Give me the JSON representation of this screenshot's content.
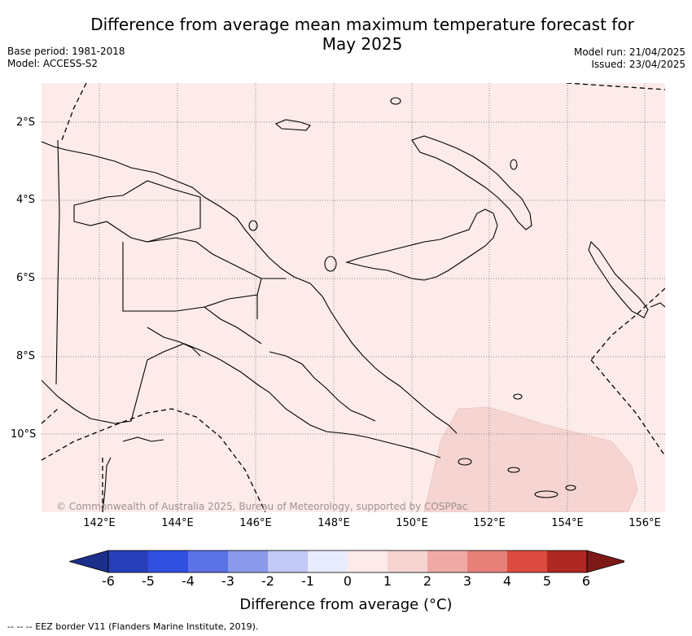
{
  "title_line1": "Difference from average mean maximum temperature forecast for",
  "title_line2": "May 2025",
  "base_period": "Base period: 1981-2018",
  "model": "Model: ACCESS-S2",
  "model_run": "Model run: 21/04/2025",
  "issued": "Issued: 23/04/2025",
  "lat_labels": [
    "2°S",
    "4°S",
    "6°S",
    "8°S",
    "10°S"
  ],
  "lon_labels": [
    "142°E",
    "144°E",
    "146°E",
    "148°E",
    "150°E",
    "152°E",
    "154°E",
    "156°E"
  ],
  "copyright": "© Commonwealth of Australia 2025, Bureau of Meteorology, supported by COSPPac",
  "colorbar": {
    "labels": [
      "-6",
      "-5",
      "-4",
      "-3",
      "-2",
      "-1",
      "0",
      "1",
      "2",
      "3",
      "4",
      "5",
      "6"
    ],
    "colors": [
      "#1c2f8a",
      "#263fb8",
      "#3050e0",
      "#5b72e6",
      "#8a99eb",
      "#c2c9f4",
      "#e8ebfb",
      "#fcebe8",
      "#f5d4d2",
      "#f0aaa5",
      "#e78079",
      "#dc4b3f",
      "#af2822",
      "#7d1a17"
    ],
    "title": "Difference from average (°C)"
  },
  "map_fill_colors": {
    "background": "#fcebe8",
    "anomaly_1_2": "#f5d4d2"
  },
  "footer": "--  --  -- EEZ border V11 (Flanders Marine Institute, 2019)."
}
